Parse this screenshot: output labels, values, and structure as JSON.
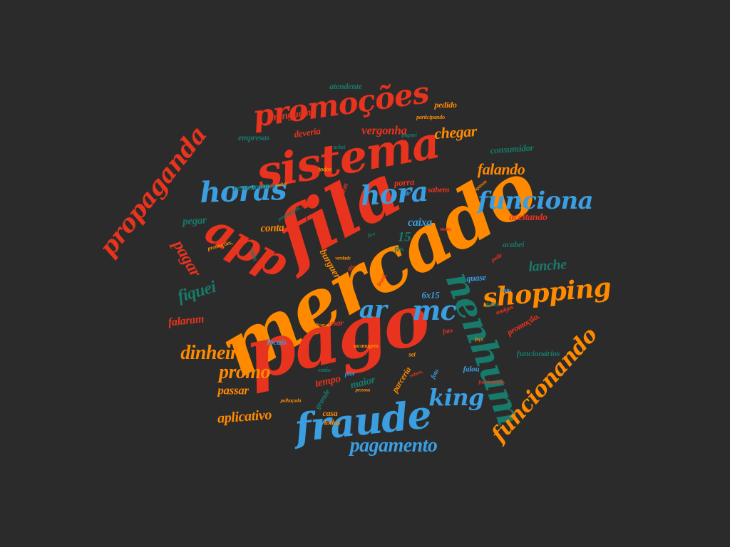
{
  "palette": {
    "background": "#2b2b2b",
    "red": "#e8331e",
    "orange": "#ff8a00",
    "blue": "#3a9ee0",
    "teal": "#177a6a"
  },
  "words": [
    {
      "text": "mercado",
      "color": "orange"
    },
    {
      "text": "pago",
      "color": "red"
    },
    {
      "text": "fila",
      "color": "red"
    },
    {
      "text": "sistema",
      "color": "red"
    },
    {
      "text": "app",
      "color": "red"
    },
    {
      "text": "nenhum",
      "color": "teal"
    },
    {
      "text": "fraude",
      "color": "blue"
    },
    {
      "text": "promoções",
      "color": "red"
    },
    {
      "text": "horas",
      "color": "blue"
    },
    {
      "text": "shopping",
      "color": "orange"
    },
    {
      "text": "funciona",
      "color": "blue"
    },
    {
      "text": "mc",
      "color": "blue"
    },
    {
      "text": "hora",
      "color": "blue"
    },
    {
      "text": "ar",
      "color": "blue"
    },
    {
      "text": "propaganda",
      "color": "red"
    },
    {
      "text": "pagamento",
      "color": "blue"
    },
    {
      "text": "funcionando",
      "color": "orange"
    },
    {
      "text": "dinheiro",
      "color": "orange"
    },
    {
      "text": "king",
      "color": "blue"
    },
    {
      "text": "promo",
      "color": "orange"
    },
    {
      "text": "falando",
      "color": "orange"
    },
    {
      "text": "chegar",
      "color": "orange"
    },
    {
      "text": "vergonha",
      "color": "red"
    },
    {
      "text": "fiquei",
      "color": "teal"
    },
    {
      "text": "pagar",
      "color": "red"
    },
    {
      "text": "lanche",
      "color": "teal"
    },
    {
      "text": "aplicativo",
      "color": "orange"
    },
    {
      "text": "passar",
      "color": "orange"
    },
    {
      "text": "caixa",
      "color": "blue"
    },
    {
      "text": "conta",
      "color": "orange"
    },
    {
      "text": "15",
      "color": "teal"
    },
    {
      "text": "falaram",
      "color": "red"
    },
    {
      "text": "burguer",
      "color": "orange"
    },
    {
      "text": "ninguém",
      "color": "red"
    },
    {
      "text": "pedido",
      "color": "orange"
    },
    {
      "text": "atendente",
      "color": "teal"
    },
    {
      "text": "empresas",
      "color": "teal"
    },
    {
      "text": "deveria",
      "color": "red"
    },
    {
      "text": "consumidor",
      "color": "teal"
    },
    {
      "text": "restaurantes",
      "color": "teal"
    },
    {
      "text": "aceitando",
      "color": "red"
    },
    {
      "text": "funcionários",
      "color": "teal"
    },
    {
      "text": "tempo",
      "color": "red"
    },
    {
      "text": "maior",
      "color": "teal"
    },
    {
      "text": "pegar",
      "color": "teal"
    },
    {
      "text": "locais",
      "color": "blue"
    },
    {
      "text": "porra",
      "color": "red"
    },
    {
      "text": "sabem",
      "color": "red"
    },
    {
      "text": "casa",
      "color": "orange"
    },
    {
      "text": "todas",
      "color": "orange"
    },
    {
      "text": "usar",
      "color": "red"
    },
    {
      "text": "acabei",
      "color": "teal"
    },
    {
      "text": "quase",
      "color": "blue"
    },
    {
      "text": "6x15",
      "color": "blue"
    },
    {
      "text": "parceria",
      "color": "orange"
    },
    {
      "text": "grande",
      "color": "teal"
    },
    {
      "text": "amigos",
      "color": "red"
    },
    {
      "text": "promoção.",
      "color": "red"
    },
    {
      "text": "falou",
      "color": "blue"
    },
    {
      "text": "além",
      "color": "red"
    },
    {
      "text": "caiu",
      "color": "teal"
    },
    {
      "text": "todos",
      "color": "orange"
    },
    {
      "text": "sair",
      "color": "blue"
    },
    {
      "text": "as,",
      "color": "red"
    },
    {
      "text": "ar,",
      "color": "orange"
    },
    {
      "text": "pior",
      "color": "blue"
    },
    {
      "text": "fato",
      "color": "red"
    },
    {
      "text": "fila,",
      "color": "teal"
    },
    {
      "text": "participando",
      "color": "orange"
    },
    {
      "text": "paguei",
      "color": "teal"
    },
    {
      "text": "promoções,",
      "color": "orange"
    },
    {
      "text": "raivo",
      "color": "orange"
    },
    {
      "text": "sacanagem",
      "color": "orange"
    },
    {
      "text": "brasil,",
      "color": "red"
    },
    {
      "text": "então",
      "color": "teal"
    },
    {
      "text": "enganou",
      "color": "orange"
    },
    {
      "text": "pedir",
      "color": "red"
    },
    {
      "text": "meia",
      "color": "red"
    },
    {
      "text": "falha",
      "color": "teal"
    },
    {
      "text": "sei",
      "color": "orange"
    },
    {
      "text": "foto",
      "color": "blue"
    },
    {
      "text": "saiu",
      "color": "blue"
    },
    {
      "text": "funcionando.",
      "color": "red"
    },
    {
      "text": "palhaçada",
      "color": "orange"
    },
    {
      "text": "pago,",
      "color": "red"
    },
    {
      "text": "faço",
      "color": "orange"
    },
    {
      "text": "fica",
      "color": "teal"
    },
    {
      "text": "sabem,",
      "color": "red"
    },
    {
      "text": "achei",
      "color": "teal"
    },
    {
      "text": "verdade",
      "color": "orange"
    },
    {
      "text": "propaganda,",
      "color": "teal"
    },
    {
      "text": "pessoas",
      "color": "orange"
    },
    {
      "text": "aceita",
      "color": "red"
    },
    {
      "text": "ficar",
      "color": "orange"
    }
  ]
}
